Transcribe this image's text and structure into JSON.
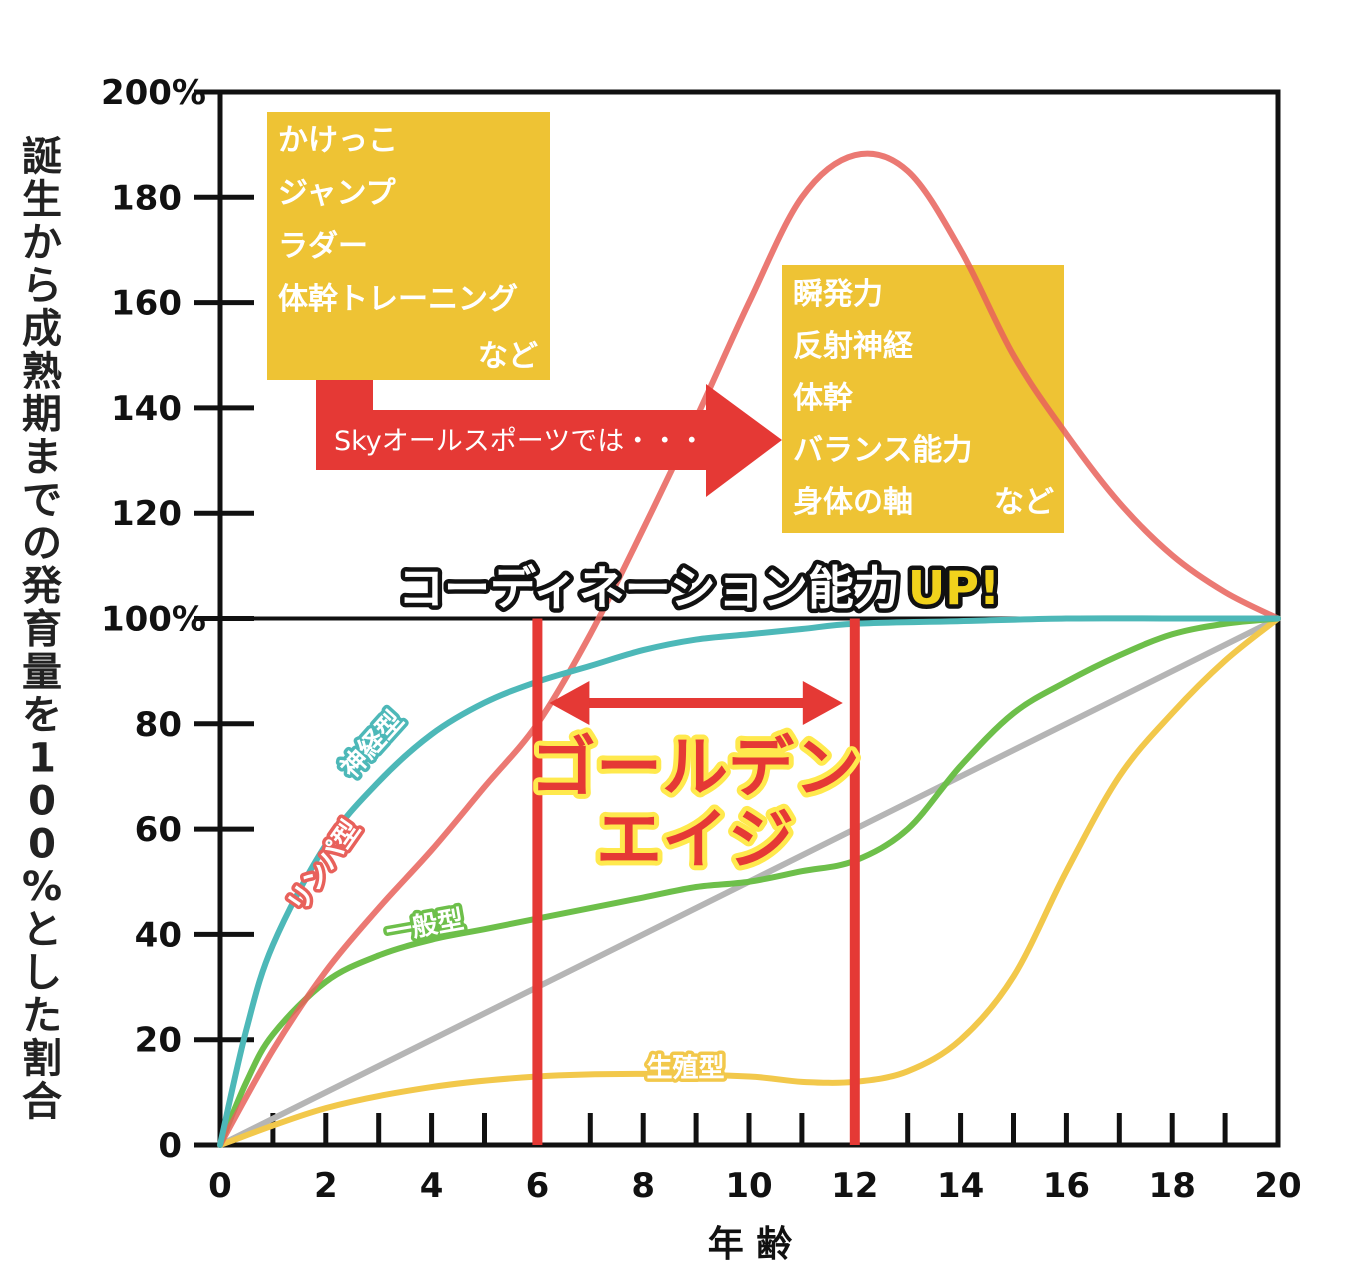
{
  "chart_data": {
    "type": "line",
    "ylabel": "誕生から成熟期までの発育量を100%とした割合",
    "xlabel": "年 齢",
    "xlim": [
      0,
      20
    ],
    "ylim": [
      0,
      200
    ],
    "x_ticks": [
      "0",
      "2",
      "4",
      "6",
      "8",
      "10",
      "12",
      "14",
      "16",
      "18",
      "20"
    ],
    "y_ticks": [
      "0",
      "20",
      "40",
      "60",
      "80",
      "100%",
      "120",
      "140",
      "160",
      "180",
      "200%"
    ],
    "series": [
      {
        "name": "神経型",
        "color": "#4db8b8",
        "x": [
          0,
          0.5,
          1,
          2,
          3,
          4,
          5,
          6,
          7,
          8,
          9,
          10,
          11,
          12,
          14,
          16,
          18,
          20
        ],
        "y": [
          0,
          22,
          38,
          57,
          69,
          78,
          84,
          88,
          91,
          94,
          96,
          97,
          98,
          99,
          99.5,
          100,
          100,
          100
        ]
      },
      {
        "name": "リンパ型",
        "color": "#e8615b",
        "x": [
          0,
          1,
          2,
          3,
          4,
          5,
          6,
          7,
          8,
          9,
          10,
          11,
          12,
          13,
          14,
          15,
          16,
          17,
          18,
          19,
          20
        ],
        "y": [
          0,
          18,
          33,
          45,
          56,
          68,
          80,
          97,
          117,
          138,
          160,
          180,
          188,
          185,
          170,
          150,
          135,
          122,
          112,
          105,
          100
        ]
      },
      {
        "name": "一般型",
        "color": "#6dbf4a",
        "x": [
          0,
          0.5,
          1,
          2,
          3,
          4,
          5,
          6,
          7,
          8,
          9,
          10,
          11,
          12,
          13,
          14,
          15,
          16,
          17,
          18,
          19,
          20
        ],
        "y": [
          0,
          12,
          21,
          31,
          36,
          39,
          41,
          43,
          45,
          47,
          49,
          50,
          52,
          54,
          60,
          72,
          82,
          88,
          93,
          97,
          99,
          100
        ]
      },
      {
        "name": "",
        "color": "#b5b5b5",
        "x": [
          0,
          20
        ],
        "y": [
          0,
          100
        ]
      },
      {
        "name": "生殖型",
        "color": "#f2c84b",
        "x": [
          0,
          2,
          4,
          6,
          8,
          10,
          11,
          12,
          13,
          14,
          15,
          16,
          17,
          18,
          19,
          20
        ],
        "y": [
          0,
          7,
          11,
          13,
          13.5,
          13,
          12,
          12,
          14,
          20,
          32,
          52,
          70,
          82,
          92,
          100
        ]
      }
    ],
    "curve_labels": [
      {
        "text": "神経型",
        "x": 3.0,
        "y": 75,
        "angle": -48,
        "color": "#4db8b8"
      },
      {
        "text": "リンパ型",
        "x": 2.1,
        "y": 52,
        "angle": -55,
        "color": "#e8615b"
      },
      {
        "text": "一般型",
        "x": 3.9,
        "y": 40,
        "angle": -10,
        "color": "#6dbf4a"
      },
      {
        "text": "生殖型",
        "x": 8.8,
        "y": 13,
        "angle": 0,
        "color": "#f2c84b"
      }
    ],
    "golden_age": {
      "start": 6,
      "end": 12,
      "color": "#e53935",
      "label_lines": [
        "ゴールデン",
        "エイジ"
      ]
    },
    "baseline_y": 100,
    "annotations": {
      "left_box": {
        "color": "#eec334",
        "lines": [
          "かけっこ",
          "ジャンプ",
          "ラダー",
          "体幹トレーニング"
        ],
        "suffix": "など"
      },
      "right_box": {
        "color": "#eec334",
        "lines": [
          "瞬発力",
          "反射神経",
          "体幹",
          "バランス能力",
          "身体の軸"
        ],
        "suffix": "など"
      },
      "arrow_text": "Skyオールスポーツでは・・・",
      "arrow_color": "#e53935",
      "banner_main": "コーディネーション能力",
      "banner_up": "UP!"
    },
    "grid": false,
    "legend": "none"
  }
}
